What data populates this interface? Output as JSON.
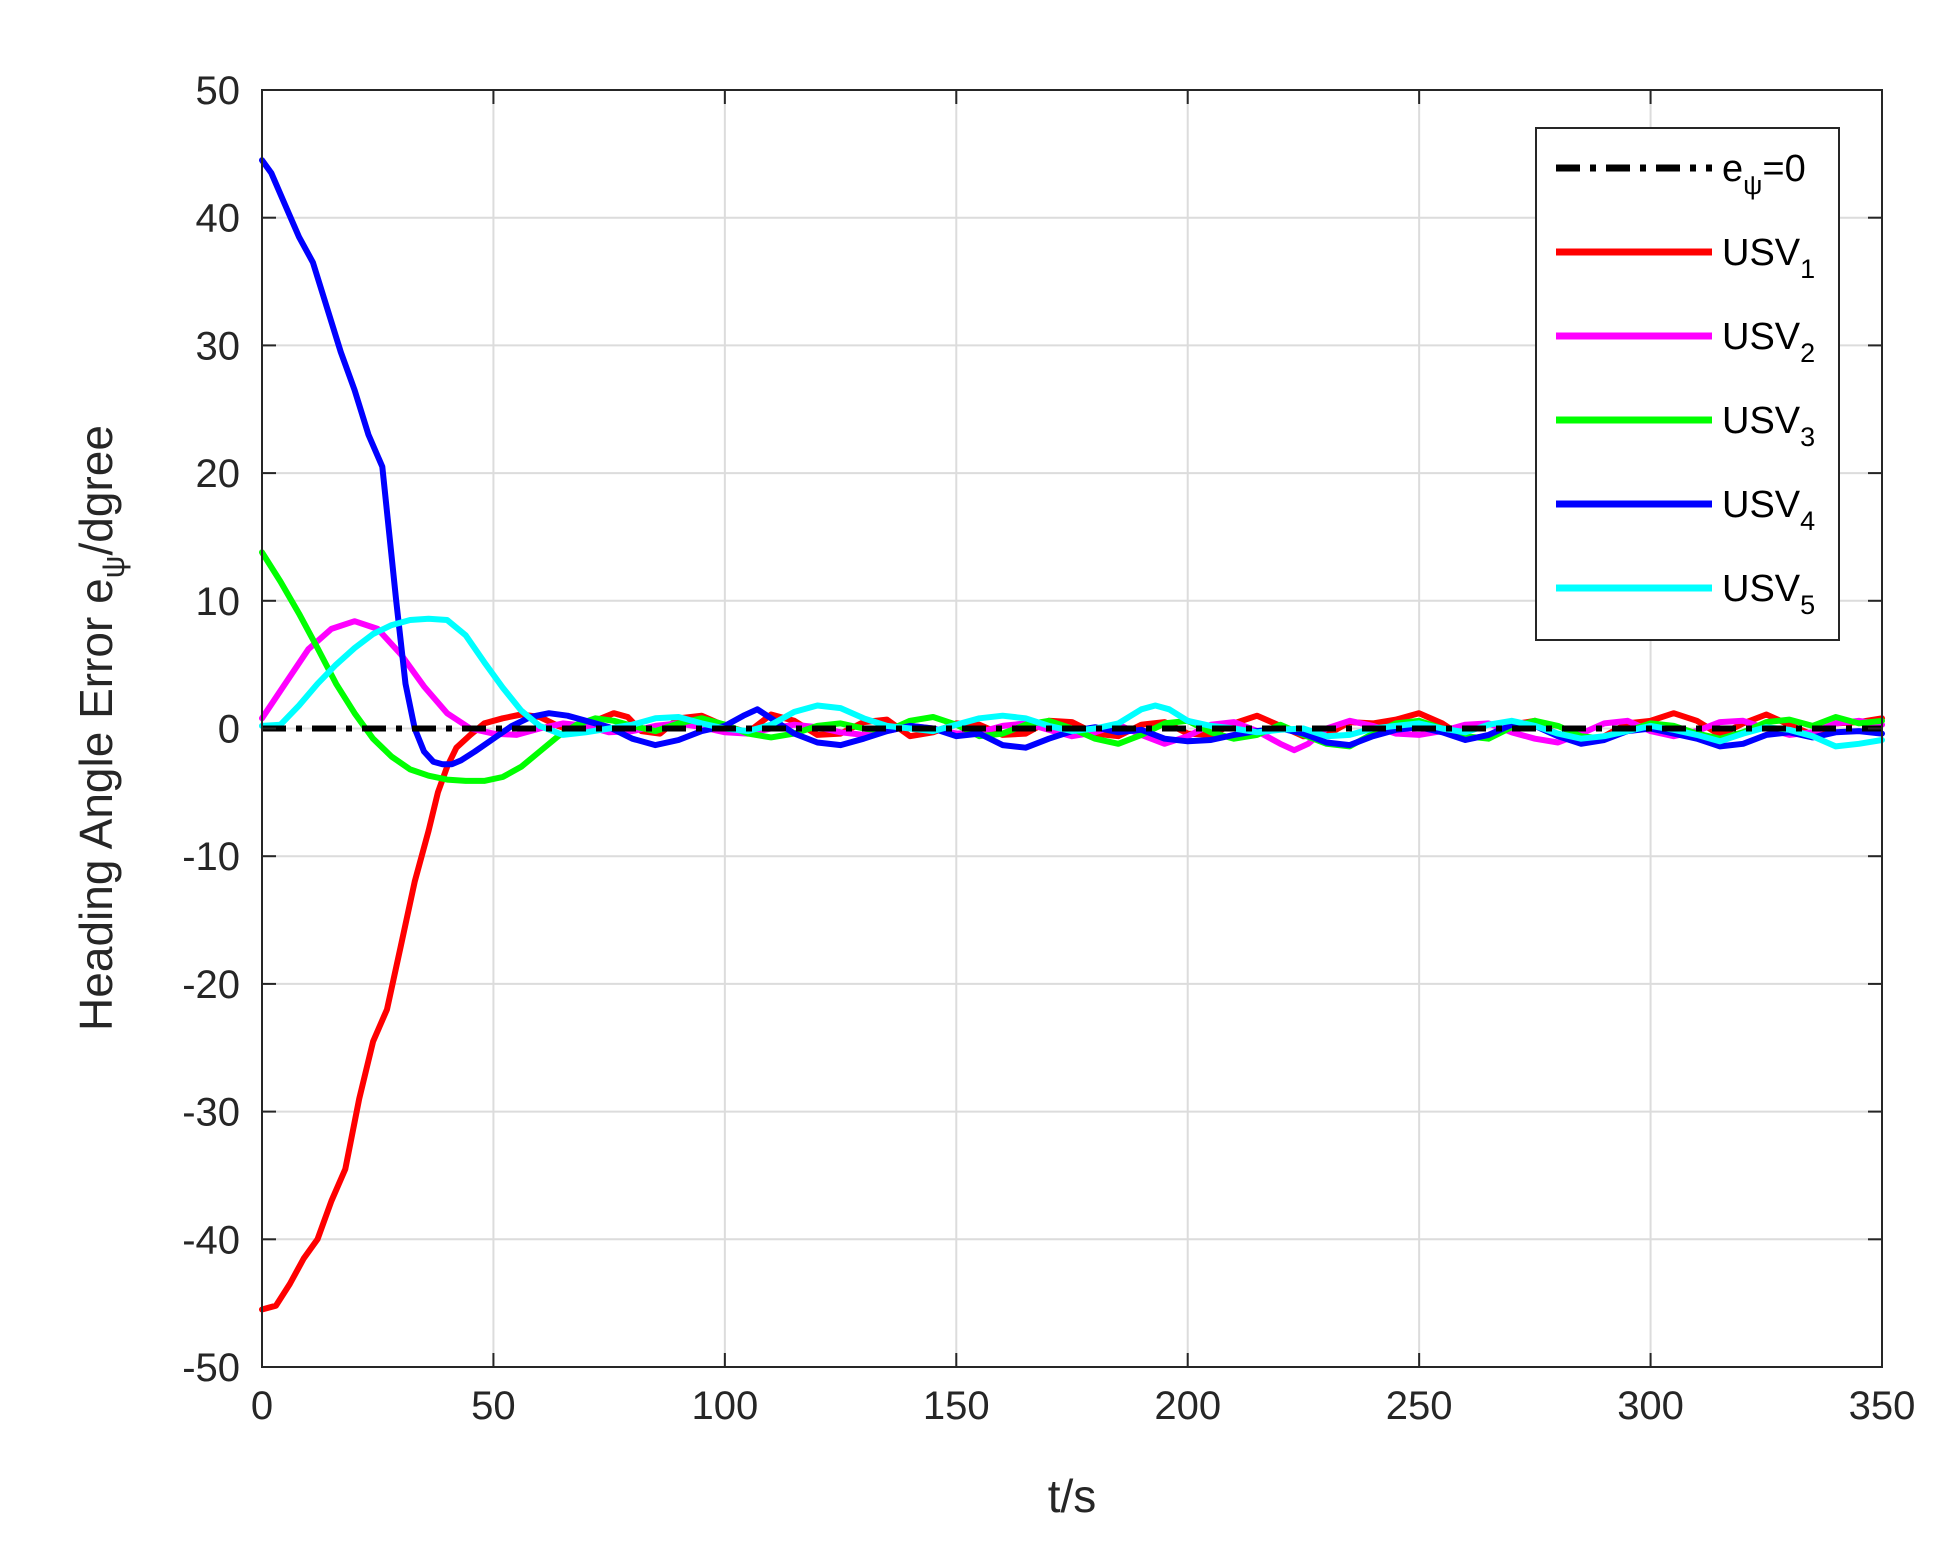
{
  "chart_data": {
    "type": "line",
    "title": "",
    "xlabel": "t/s",
    "ylabel": {
      "main": "Heading Angle Error e",
      "sub": "ψ",
      "tail": "/dgree"
    },
    "xlim": [
      0,
      350
    ],
    "ylim": [
      -50,
      50
    ],
    "xticks": [
      0,
      50,
      100,
      150,
      200,
      250,
      300,
      350
    ],
    "yticks": [
      -50,
      -40,
      -30,
      -20,
      -10,
      0,
      10,
      20,
      30,
      40,
      50
    ],
    "grid": true,
    "legend_position": "top-right",
    "series": [
      {
        "name": {
          "main": "e",
          "sub": "ψ",
          "tail": "=0"
        },
        "color": "#000000",
        "style": "dashdot",
        "x": [
          0,
          350
        ],
        "y": [
          0,
          0
        ]
      },
      {
        "name": {
          "main": "USV",
          "sub": "1",
          "tail": ""
        },
        "color": "#ff0000",
        "style": "solid",
        "x": [
          0,
          3,
          6,
          9,
          12,
          15,
          18,
          21,
          24,
          27,
          30,
          33,
          36,
          38,
          40,
          42,
          45,
          48,
          52,
          56,
          60,
          64,
          68,
          72,
          76,
          79,
          82,
          86,
          90,
          95,
          100,
          105,
          110,
          115,
          120,
          125,
          130,
          135,
          140,
          145,
          150,
          155,
          160,
          165,
          170,
          175,
          180,
          185,
          190,
          195,
          200,
          205,
          210,
          215,
          220,
          225,
          230,
          235,
          240,
          245,
          250,
          255,
          260,
          265,
          270,
          275,
          280,
          285,
          290,
          295,
          300,
          305,
          310,
          315,
          320,
          325,
          330,
          335,
          340,
          345,
          350
        ],
        "y": [
          -45.5,
          -45.2,
          -43.5,
          -41.5,
          -40,
          -37,
          -34.5,
          -29,
          -24.5,
          -22,
          -17,
          -12,
          -8,
          -5,
          -3,
          -1.5,
          -0.5,
          0.4,
          0.8,
          1.1,
          0.9,
          0.2,
          -0.3,
          0.6,
          1.2,
          0.9,
          -0.2,
          -0.4,
          0.8,
          1,
          0.2,
          -0.3,
          1.1,
          0.6,
          -0.5,
          -0.4,
          0.5,
          0.7,
          -0.6,
          -0.3,
          0.4,
          0.3,
          -0.5,
          -0.4,
          0.6,
          0.5,
          -0.4,
          -0.6,
          0.3,
          0.5,
          -0.4,
          -0.5,
          0.4,
          1,
          0.2,
          -0.6,
          -0.5,
          0.5,
          0.4,
          0.7,
          1.2,
          0.4,
          -0.8,
          -0.6,
          0.3,
          0.6,
          -0.5,
          -1,
          -0.6,
          0.4,
          0.6,
          1.2,
          0.6,
          -0.5,
          0.4,
          1.1,
          0.3,
          -0.5,
          0.4,
          0.5,
          0.8
        ]
      },
      {
        "name": {
          "main": "USV",
          "sub": "2",
          "tail": ""
        },
        "color": "#ff00ff",
        "style": "solid",
        "x": [
          0,
          5,
          10,
          15,
          20,
          25,
          30,
          35,
          40,
          45,
          50,
          55,
          60,
          65,
          70,
          75,
          80,
          85,
          90,
          95,
          100,
          105,
          110,
          115,
          120,
          125,
          130,
          135,
          140,
          145,
          150,
          155,
          160,
          165,
          170,
          175,
          180,
          185,
          190,
          195,
          200,
          205,
          210,
          215,
          220,
          223,
          226,
          230,
          235,
          240,
          245,
          250,
          255,
          260,
          265,
          270,
          275,
          280,
          285,
          290,
          295,
          300,
          305,
          310,
          315,
          320,
          325,
          330,
          335,
          340,
          345,
          350
        ],
        "y": [
          0.8,
          3.5,
          6.2,
          7.8,
          8.4,
          7.8,
          5.8,
          3.3,
          1.2,
          0,
          -0.4,
          -0.5,
          0,
          0.4,
          0.2,
          -0.3,
          -0.2,
          0.2,
          0.4,
          0.1,
          -0.3,
          -0.4,
          0,
          0.3,
          0.1,
          -0.3,
          -0.5,
          -0.2,
          0.2,
          0,
          -0.4,
          -0.3,
          0.2,
          0.4,
          -0.1,
          -0.6,
          -0.3,
          0.3,
          -0.5,
          -1.2,
          -0.6,
          0.3,
          0.5,
          -0.2,
          -1.2,
          -1.7,
          -1.2,
          0,
          0.6,
          0.2,
          -0.4,
          -0.5,
          -0.2,
          0.3,
          0.4,
          -0.3,
          -0.8,
          -1.1,
          -0.4,
          0.4,
          0.6,
          -0.2,
          -0.6,
          -0.2,
          0.5,
          0.6,
          0,
          -0.5,
          -0.3,
          0.4,
          0.6,
          0.3
        ]
      },
      {
        "name": {
          "main": "USV",
          "sub": "3",
          "tail": ""
        },
        "color": "#00ff00",
        "style": "solid",
        "x": [
          0,
          4,
          8,
          12,
          16,
          20,
          24,
          28,
          32,
          36,
          40,
          44,
          48,
          52,
          56,
          60,
          64,
          68,
          72,
          76,
          80,
          85,
          90,
          95,
          100,
          105,
          110,
          115,
          120,
          125,
          130,
          135,
          140,
          145,
          150,
          155,
          160,
          165,
          170,
          175,
          180,
          185,
          190,
          195,
          200,
          205,
          210,
          215,
          220,
          225,
          230,
          235,
          240,
          245,
          250,
          255,
          260,
          265,
          270,
          275,
          280,
          285,
          290,
          295,
          300,
          305,
          310,
          315,
          320,
          325,
          330,
          335,
          340,
          345,
          350
        ],
        "y": [
          13.8,
          11.5,
          9,
          6.3,
          3.5,
          1.2,
          -0.8,
          -2.2,
          -3.2,
          -3.7,
          -4,
          -4.1,
          -4.1,
          -3.8,
          -3,
          -1.8,
          -0.6,
          0.3,
          0.8,
          0.6,
          0.2,
          -0.2,
          0.4,
          0.8,
          0.3,
          -0.4,
          -0.7,
          -0.4,
          0.2,
          0.4,
          0,
          -0.2,
          0.6,
          0.9,
          0.3,
          -0.6,
          -0.4,
          0.3,
          0.6,
          0,
          -0.8,
          -1.2,
          -0.5,
          0.4,
          0.6,
          -0.3,
          -0.8,
          -0.5,
          0.3,
          -0.5,
          -1.2,
          -1.4,
          -0.4,
          0.4,
          0.6,
          0,
          -0.6,
          -0.8,
          0.1,
          0.6,
          0.2,
          -0.6,
          -0.8,
          -0.2,
          0.4,
          0.2,
          -0.4,
          -0.8,
          -0.3,
          0.5,
          0.7,
          0.2,
          0.9,
          0.4,
          0.6
        ]
      },
      {
        "name": {
          "main": "USV",
          "sub": "4",
          "tail": ""
        },
        "color": "#0000ff",
        "style": "solid",
        "x": [
          0,
          2,
          5,
          8,
          11,
          14,
          17,
          20,
          23,
          26,
          29,
          31,
          33,
          35,
          37,
          39,
          41,
          43,
          46,
          50,
          54,
          58,
          62,
          66,
          70,
          75,
          80,
          85,
          90,
          95,
          100,
          104,
          107,
          110,
          115,
          120,
          125,
          130,
          135,
          140,
          145,
          150,
          155,
          160,
          165,
          170,
          175,
          180,
          185,
          190,
          195,
          200,
          205,
          210,
          215,
          220,
          225,
          230,
          235,
          240,
          245,
          250,
          255,
          260,
          265,
          270,
          275,
          280,
          285,
          290,
          295,
          300,
          305,
          310,
          315,
          320,
          325,
          330,
          335,
          340,
          345,
          350
        ],
        "y": [
          44.5,
          43.5,
          41,
          38.5,
          36.5,
          33,
          29.5,
          26.5,
          23,
          20.5,
          10,
          3.5,
          0,
          -1.8,
          -2.6,
          -2.8,
          -2.8,
          -2.5,
          -1.8,
          -0.8,
          0.2,
          0.9,
          1.2,
          1,
          0.6,
          0.1,
          -0.8,
          -1.3,
          -0.9,
          -0.2,
          0.2,
          1,
          1.5,
          0.8,
          -0.4,
          -1.1,
          -1.3,
          -0.8,
          -0.2,
          0.2,
          0,
          -0.6,
          -0.4,
          -1.3,
          -1.5,
          -0.8,
          -0.2,
          0.1,
          -0.3,
          -0.1,
          -0.8,
          -1,
          -0.9,
          -0.5,
          -0.2,
          0,
          -0.4,
          -1.1,
          -1.3,
          -0.6,
          -0.1,
          0.1,
          -0.3,
          -0.9,
          -0.5,
          0.3,
          0.2,
          -0.6,
          -1.2,
          -0.9,
          -0.2,
          0,
          -0.4,
          -0.8,
          -1.4,
          -1.2,
          -0.5,
          -0.3,
          -0.7,
          -0.3,
          -0.2,
          -0.4
        ]
      },
      {
        "name": {
          "main": "USV",
          "sub": "5",
          "tail": ""
        },
        "color": "#00ffff",
        "style": "solid",
        "x": [
          0,
          4,
          8,
          12,
          16,
          20,
          24,
          28,
          32,
          36,
          40,
          44,
          48,
          52,
          56,
          60,
          65,
          70,
          75,
          80,
          85,
          90,
          95,
          100,
          105,
          110,
          115,
          120,
          125,
          130,
          135,
          140,
          145,
          150,
          155,
          160,
          165,
          170,
          175,
          180,
          185,
          190,
          193,
          196,
          200,
          205,
          210,
          215,
          220,
          225,
          230,
          235,
          240,
          245,
          250,
          255,
          260,
          265,
          270,
          275,
          280,
          285,
          290,
          295,
          300,
          305,
          310,
          315,
          320,
          325,
          330,
          335,
          340,
          345,
          350
        ],
        "y": [
          0.2,
          0.3,
          1.8,
          3.5,
          5,
          6.3,
          7.4,
          8.1,
          8.5,
          8.6,
          8.5,
          7.3,
          5.2,
          3.2,
          1.4,
          0.2,
          -0.5,
          -0.3,
          0,
          0.3,
          0.8,
          0.9,
          0.4,
          0,
          -0.2,
          0.3,
          1.3,
          1.8,
          1.6,
          0.8,
          0.2,
          0,
          -0.2,
          0.3,
          0.8,
          1,
          0.8,
          0.2,
          -0.2,
          0,
          0.4,
          1.5,
          1.8,
          1.5,
          0.6,
          0.2,
          0,
          -0.3,
          -0.1,
          0,
          -0.6,
          -0.5,
          0,
          0.2,
          0.4,
          0,
          -0.3,
          0.3,
          0.6,
          0.2,
          -0.4,
          -0.8,
          -0.6,
          -0.2,
          0.2,
          -0.1,
          -0.5,
          -1,
          -0.4,
          0.1,
          -0.1,
          -0.6,
          -1.4,
          -1.2,
          -0.9
        ]
      }
    ]
  }
}
